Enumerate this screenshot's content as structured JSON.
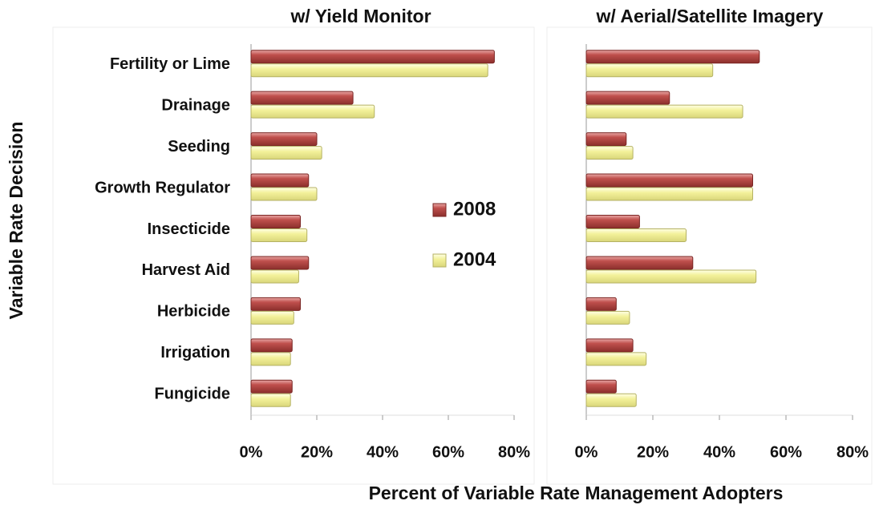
{
  "chart_data": [
    {
      "type": "bar",
      "orientation": "horizontal",
      "title": "w/ Yield Monitor",
      "ylabel": "Variable Rate Decision",
      "xlabel": "Percent of Variable Rate Management Adopters",
      "categories": [
        "Fertility or Lime",
        "Drainage",
        "Seeding",
        "Growth Regulator",
        "Insecticide",
        "Harvest Aid",
        "Herbicide",
        "Irrigation",
        "Fungicide"
      ],
      "series": [
        {
          "name": "2008",
          "color": "#c0504d",
          "values": [
            74,
            31,
            20,
            17.5,
            15,
            17.5,
            15,
            12.5,
            12.5
          ]
        },
        {
          "name": "2004",
          "color": "#f3f19a",
          "values": [
            72,
            37.5,
            21.5,
            20,
            17,
            14.5,
            13,
            12,
            12
          ]
        }
      ],
      "xlim": [
        0,
        80
      ],
      "xticks": [
        {
          "value": 0,
          "label": "0%"
        },
        {
          "value": 20,
          "label": "20%"
        },
        {
          "value": 40,
          "label": "40%"
        },
        {
          "value": 60,
          "label": "60%"
        },
        {
          "value": 80,
          "label": "80%"
        }
      ],
      "legend": "center-right",
      "grid": false
    },
    {
      "type": "bar",
      "orientation": "horizontal",
      "title": "w/ Aerial/Satellite Imagery",
      "series": [
        {
          "color": "#c0504d",
          "values": [
            52,
            25,
            12,
            50,
            16,
            32,
            9,
            14,
            9
          ]
        },
        {
          "color": "#f3f19a",
          "values": [
            38,
            47,
            14,
            50,
            30,
            51,
            13,
            18,
            15
          ]
        }
      ],
      "xlim": [
        0,
        80
      ],
      "xticks": [
        {
          "value": 0,
          "label": "0%"
        },
        {
          "value": 20,
          "label": "20%"
        },
        {
          "value": 40,
          "label": "40%"
        },
        {
          "value": 60,
          "label": "60%"
        },
        {
          "value": 80,
          "label": "80%"
        }
      ],
      "grid": false
    }
  ]
}
